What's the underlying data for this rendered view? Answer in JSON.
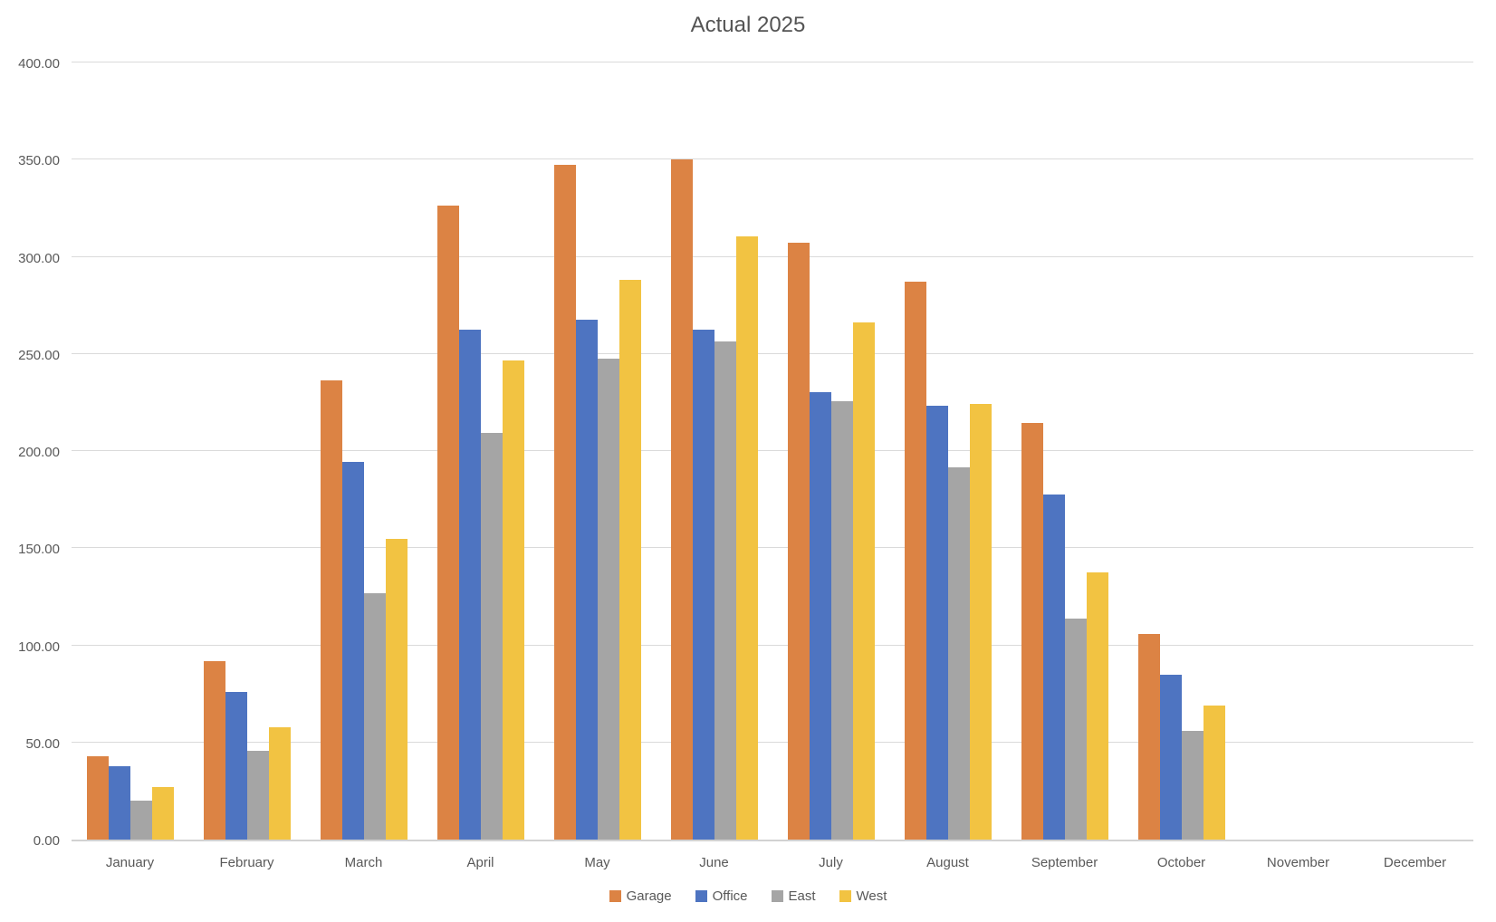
{
  "chart_data": {
    "type": "bar",
    "title": "Actual 2025",
    "categories": [
      "January",
      "February",
      "March",
      "April",
      "May",
      "June",
      "July",
      "August",
      "September",
      "October",
      "November",
      "December"
    ],
    "series": [
      {
        "name": "Garage",
        "color": "#DC8344",
        "values": [
          43,
          92,
          237,
          327,
          348,
          351,
          308,
          288,
          215,
          106,
          0,
          0
        ]
      },
      {
        "name": "Office",
        "color": "#4E74C1",
        "values": [
          38,
          76,
          195,
          263,
          268,
          263,
          231,
          224,
          178,
          85,
          0,
          0
        ]
      },
      {
        "name": "East",
        "color": "#A5A5A5",
        "values": [
          20,
          46,
          127,
          210,
          248,
          257,
          226,
          192,
          114,
          56,
          0,
          0
        ]
      },
      {
        "name": "West",
        "color": "#F2C342",
        "values": [
          27,
          58,
          155,
          247,
          289,
          311,
          267,
          225,
          138,
          69,
          0,
          0
        ]
      }
    ],
    "ylim": [
      0,
      400
    ],
    "ytick_step": 50,
    "ytick_labels": [
      "0.00",
      "50.00",
      "100.00",
      "150.00",
      "200.00",
      "250.00",
      "300.00",
      "350.00",
      "400.00"
    ],
    "grid": true,
    "legend_position": "bottom",
    "colors": {
      "title_text": "#545454",
      "axis_text": "#595959",
      "gridline": "#DADADA",
      "axis_line": "#D2D2D2",
      "background": "#FFFFFF"
    }
  }
}
